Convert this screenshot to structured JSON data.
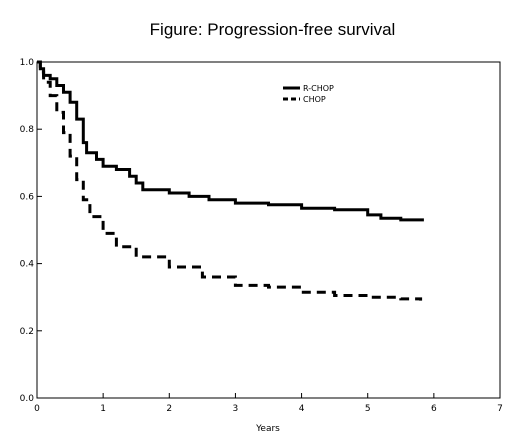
{
  "chart_data": {
    "type": "line",
    "title": "Figure: Progression-free survival",
    "xlabel": "Years",
    "ylabel": "",
    "xlim": [
      0,
      7
    ],
    "ylim": [
      0.0,
      1.0
    ],
    "x_ticks": [
      "0",
      "1",
      "2",
      "3",
      "4",
      "5",
      "6",
      "7"
    ],
    "y_ticks": [
      "0.0",
      "0.2",
      "0.4",
      "0.6",
      "0.8",
      "1.0"
    ],
    "grid": false,
    "legend_position": "top-right",
    "series": [
      {
        "name": "R-CHOP",
        "style": "solid",
        "color": "#000000",
        "x": [
          0,
          0.05,
          0.1,
          0.2,
          0.3,
          0.4,
          0.5,
          0.6,
          0.7,
          0.75,
          0.9,
          1.0,
          1.2,
          1.4,
          1.5,
          1.6,
          2.0,
          2.3,
          2.6,
          3.0,
          3.5,
          4.0,
          4.5,
          5.0,
          5.2,
          5.5,
          5.85
        ],
        "y": [
          1.0,
          0.98,
          0.96,
          0.95,
          0.93,
          0.91,
          0.88,
          0.83,
          0.76,
          0.73,
          0.71,
          0.69,
          0.68,
          0.66,
          0.64,
          0.62,
          0.61,
          0.6,
          0.59,
          0.58,
          0.575,
          0.565,
          0.56,
          0.545,
          0.535,
          0.53,
          0.53
        ]
      },
      {
        "name": "CHOP",
        "style": "dashed",
        "color": "#000000",
        "x": [
          0,
          0.05,
          0.1,
          0.2,
          0.3,
          0.4,
          0.5,
          0.6,
          0.7,
          0.8,
          1.0,
          1.2,
          1.5,
          2.0,
          2.5,
          3.0,
          3.5,
          4.0,
          4.5,
          5.0,
          5.5,
          5.8
        ],
        "y": [
          1.0,
          0.97,
          0.94,
          0.9,
          0.85,
          0.79,
          0.72,
          0.65,
          0.59,
          0.54,
          0.49,
          0.45,
          0.42,
          0.39,
          0.36,
          0.335,
          0.33,
          0.315,
          0.305,
          0.3,
          0.295,
          0.29
        ]
      }
    ]
  }
}
